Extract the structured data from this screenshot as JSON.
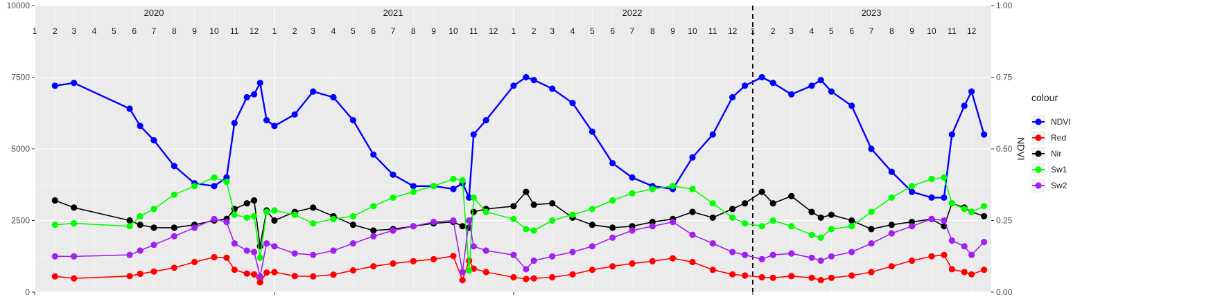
{
  "chart_data": {
    "type": "line",
    "title": "",
    "xlabel": "",
    "ylabel": "",
    "y2label": "NDVI",
    "ylim": [
      0,
      10000
    ],
    "y2lim": [
      0,
      1
    ],
    "y_ticks": [
      "0",
      "2500",
      "5000",
      "7500",
      "10000"
    ],
    "y2_ticks": [
      "0.00",
      "0.25",
      "0.50",
      "0.75",
      "1.00"
    ],
    "x_range": [
      "2020-01-01",
      "2023-12-31"
    ],
    "grid": true,
    "legend_position": "right",
    "legend_title": "colour",
    "vline_date": "2023-01-01",
    "year_labels": [
      {
        "date": "2020-07-01",
        "text": "2020"
      },
      {
        "date": "2021-07-01",
        "text": "2021"
      },
      {
        "date": "2022-07-01",
        "text": "2022"
      },
      {
        "date": "2023-07-01",
        "text": "2023"
      }
    ],
    "month_labels": [
      "1",
      "2",
      "3",
      "4",
      "5",
      "6",
      "7",
      "8",
      "9",
      "10",
      "11",
      "12"
    ],
    "dates": [
      "2020-02-01",
      "2020-03-01",
      "2020-05-25",
      "2020-06-10",
      "2020-07-01",
      "2020-08-01",
      "2020-09-01",
      "2020-10-01",
      "2020-10-20",
      "2020-11-01",
      "2020-11-20",
      "2020-12-01",
      "2020-12-10",
      "2020-12-20",
      "2021-01-01",
      "2021-02-01",
      "2021-03-01",
      "2021-04-01",
      "2021-05-01",
      "2021-06-01",
      "2021-07-01",
      "2021-08-01",
      "2021-09-01",
      "2021-10-01",
      "2021-10-15",
      "2021-10-25",
      "2021-11-01",
      "2021-11-20",
      "2022-01-01",
      "2022-01-20",
      "2022-02-01",
      "2022-03-01",
      "2022-04-01",
      "2022-05-01",
      "2022-06-01",
      "2022-07-01",
      "2022-08-01",
      "2022-09-01",
      "2022-10-01",
      "2022-11-01",
      "2022-12-01",
      "2022-12-20",
      "2023-01-15",
      "2023-02-01",
      "2023-03-01",
      "2023-04-01",
      "2023-04-15",
      "2023-05-01",
      "2023-06-01",
      "2023-07-01",
      "2023-08-01",
      "2023-09-01",
      "2023-10-01",
      "2023-10-20",
      "2023-11-01",
      "2023-11-20",
      "2023-12-01",
      "2023-12-20"
    ],
    "series": [
      {
        "name": "NDVI",
        "color": "#0000FF",
        "axis": "right",
        "values": [
          0.72,
          0.73,
          0.64,
          0.58,
          0.53,
          0.44,
          0.38,
          0.37,
          0.4,
          0.59,
          0.68,
          0.69,
          0.73,
          0.6,
          0.58,
          0.62,
          0.7,
          0.68,
          0.6,
          0.48,
          0.41,
          0.37,
          0.37,
          0.36,
          0.38,
          0.33,
          0.55,
          0.6,
          0.72,
          0.75,
          0.74,
          0.71,
          0.66,
          0.56,
          0.45,
          0.4,
          0.37,
          0.36,
          0.47,
          0.55,
          0.68,
          0.72,
          0.75,
          0.73,
          0.69,
          0.72,
          0.74,
          0.7,
          0.65,
          0.5,
          0.42,
          0.35,
          0.33,
          0.33,
          0.55,
          0.65,
          0.7,
          0.55
        ]
      },
      {
        "name": "Red",
        "color": "#FF0000",
        "axis": "left",
        "values": [
          550,
          480,
          560,
          640,
          720,
          850,
          1050,
          1220,
          1200,
          780,
          650,
          620,
          340,
          680,
          700,
          560,
          550,
          610,
          760,
          900,
          1000,
          1080,
          1150,
          1260,
          420,
          1100,
          820,
          700,
          520,
          460,
          480,
          520,
          620,
          780,
          900,
          1000,
          1080,
          1180,
          1050,
          780,
          620,
          580,
          520,
          500,
          560,
          500,
          420,
          500,
          580,
          700,
          900,
          1100,
          1250,
          1300,
          800,
          700,
          620,
          780
        ]
      },
      {
        "name": "Nir",
        "color": "#000000",
        "axis": "left",
        "values": [
          3200,
          2950,
          2500,
          2350,
          2250,
          2250,
          2350,
          2500,
          2550,
          2900,
          3100,
          3200,
          1600,
          2850,
          2500,
          2800,
          2950,
          2650,
          2350,
          2150,
          2200,
          2300,
          2400,
          2450,
          2300,
          2250,
          2800,
          2900,
          3000,
          3500,
          3050,
          3100,
          2600,
          2350,
          2250,
          2300,
          2450,
          2550,
          2800,
          2600,
          2900,
          3100,
          3500,
          3100,
          3350,
          2800,
          2600,
          2700,
          2500,
          2200,
          2350,
          2450,
          2550,
          2300,
          3100,
          2950,
          2800,
          2650
        ]
      },
      {
        "name": "Sw1",
        "color": "#00FF00",
        "axis": "left",
        "values": [
          2350,
          2400,
          2300,
          2650,
          2900,
          3400,
          3700,
          4000,
          3850,
          2700,
          2600,
          2650,
          1200,
          2800,
          2850,
          2700,
          2400,
          2550,
          2650,
          3000,
          3300,
          3500,
          3700,
          3950,
          3900,
          750,
          3300,
          2800,
          2550,
          2200,
          2150,
          2500,
          2700,
          2900,
          3200,
          3450,
          3600,
          3700,
          3600,
          3100,
          2600,
          2400,
          2300,
          2500,
          2300,
          2000,
          1900,
          2200,
          2300,
          2800,
          3300,
          3700,
          3950,
          4000,
          3100,
          2900,
          2800,
          3000
        ]
      },
      {
        "name": "Sw2",
        "color": "#A020F0",
        "axis": "left",
        "values": [
          1250,
          1250,
          1300,
          1450,
          1650,
          1950,
          2250,
          2550,
          2450,
          1700,
          1450,
          1400,
          550,
          1700,
          1600,
          1350,
          1300,
          1450,
          1700,
          1950,
          2150,
          2300,
          2450,
          2500,
          700,
          2500,
          1600,
          1450,
          1300,
          800,
          1100,
          1250,
          1400,
          1600,
          1900,
          2150,
          2300,
          2450,
          2000,
          1700,
          1400,
          1300,
          1150,
          1300,
          1350,
          1200,
          1100,
          1250,
          1400,
          1700,
          2050,
          2300,
          2550,
          2500,
          1800,
          1600,
          1300,
          1750
        ]
      }
    ]
  }
}
